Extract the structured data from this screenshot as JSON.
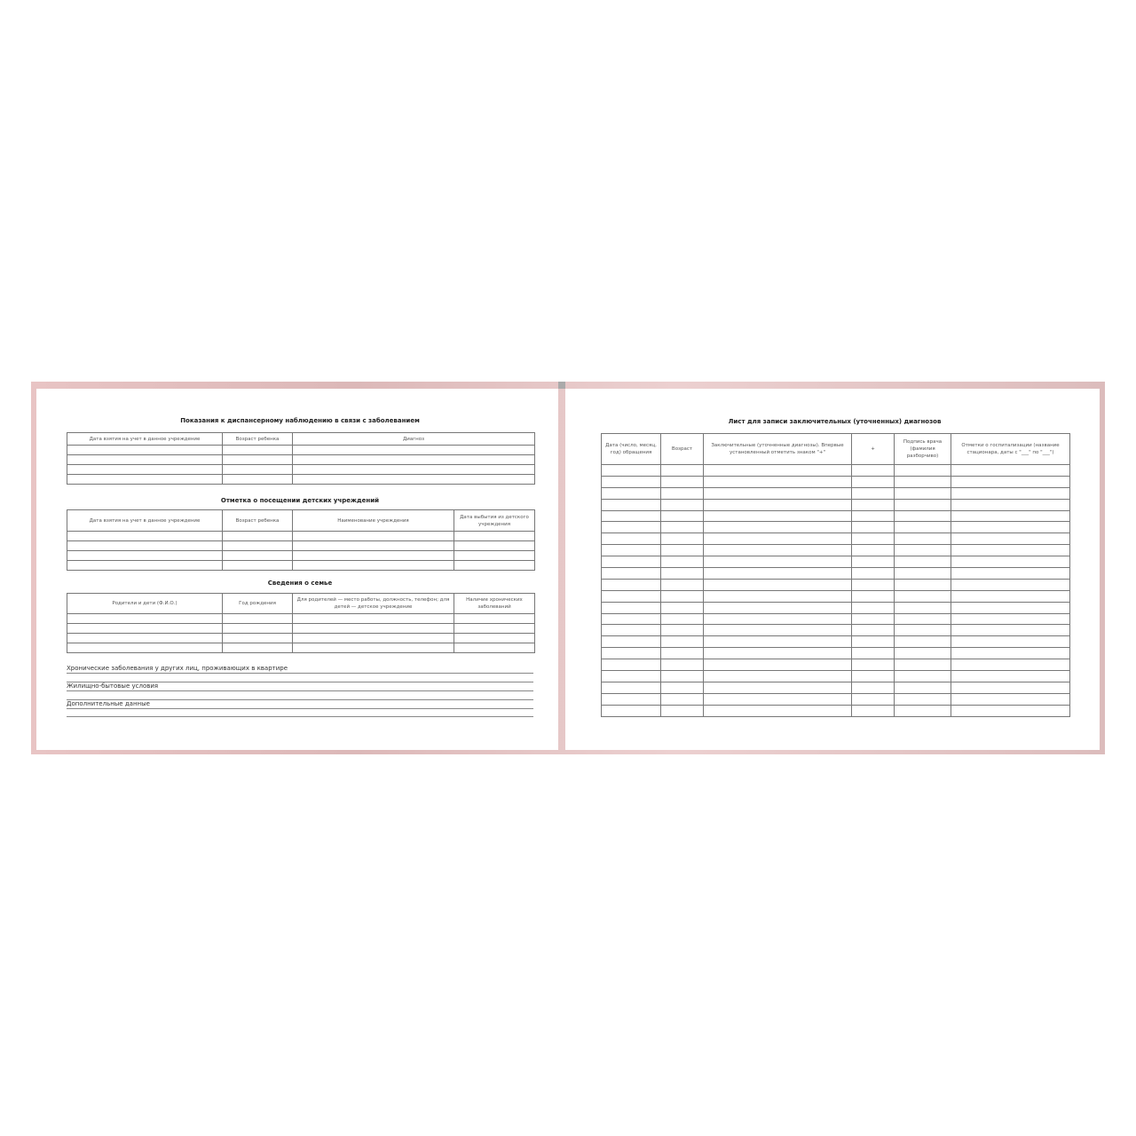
{
  "left_page": {
    "section1": {
      "title": "Показания к диспансерному наблюдению в связи с заболеванием",
      "columns": [
        "Дата взятия на учет в данное учреждение",
        "Возраст ребенка",
        "Диагноз"
      ]
    },
    "section2": {
      "title": "Отметка о посещении детских учреждений",
      "columns": [
        "Дата взятия на учет в данное учреждение",
        "Возраст ребенка",
        "Наименование учреждения",
        "Дата выбытия из детского учреждения"
      ]
    },
    "section3": {
      "title": "Сведения о семье",
      "columns": [
        "Родители и дети (Ф.И.О.)",
        "Год рождения",
        "Для родителей — место работы, должность, телефон; для детей — детское учреждение",
        "Наличие хронических заболеваний"
      ]
    },
    "fields": [
      "Хронические заболевания у других лиц, проживающих в квартире",
      "Жилищно-бытовые условия",
      "Дополнительные данные"
    ]
  },
  "right_page": {
    "title": "Лист для записи заключительных (уточненных) диагнозов",
    "columns": [
      "Дата (число, месяц, год) обращения",
      "Возраст",
      "Заключительные (уточненные диагнозы). Впервые установленный отметить знаком \"+\"",
      "+",
      "Подпись врача (фамилия разборчиво)",
      "Отметки о госпитализации (название стационара, даты с \"___\" по \"___\")"
    ]
  },
  "colors": {
    "cover": "#e2c0c0",
    "grid": "#777777"
  }
}
